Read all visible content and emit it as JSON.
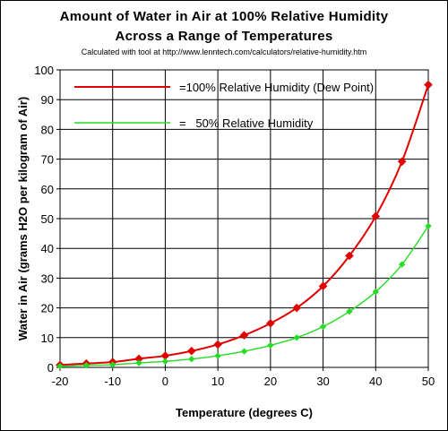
{
  "chart_data": {
    "type": "line",
    "title_line1": "Amount of Water in Air at 100% Relative Humidity",
    "title_line2": "Across a Range of Temperatures",
    "subtitle": "Calculated with tool at http://www.lenntech.com/calculators/relative-humidity.htm",
    "xlabel": "Temperature (degrees C)",
    "ylabel": "Water in Air (grams H2O per kilogram of Air)",
    "xlim": [
      -20,
      50
    ],
    "ylim": [
      0,
      100
    ],
    "x_ticks": [
      "-20",
      "-10",
      "0",
      "10",
      "20",
      "30",
      "40",
      "50"
    ],
    "y_ticks": [
      "0",
      "10",
      "20",
      "30",
      "40",
      "50",
      "60",
      "70",
      "80",
      "90",
      "100"
    ],
    "grid": true,
    "legend_position": "top-left",
    "x": [
      -20,
      -15,
      -10,
      -5,
      0,
      5,
      10,
      15,
      20,
      25,
      30,
      35,
      40,
      45,
      50
    ],
    "series": [
      {
        "name": "=100% Relative Humidity (Dew Point)",
        "color": "#e00000",
        "values": [
          0.8,
          1.3,
          1.8,
          2.9,
          3.9,
          5.5,
          7.7,
          10.8,
          14.8,
          20.0,
          27.3,
          37.5,
          50.8,
          69.2,
          95.0
        ]
      },
      {
        "name": "=   50% Relative Humidity",
        "color": "#22dd22",
        "values": [
          0.4,
          0.7,
          0.9,
          1.5,
          2.0,
          2.8,
          3.9,
          5.4,
          7.4,
          10.0,
          13.7,
          18.8,
          25.4,
          34.6,
          47.5
        ]
      }
    ]
  }
}
